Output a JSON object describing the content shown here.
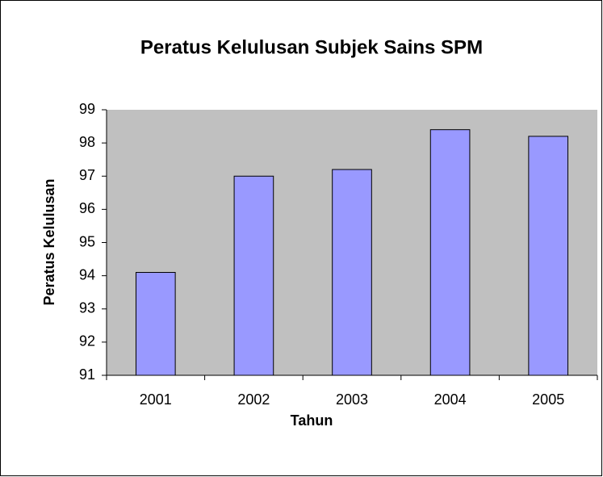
{
  "chart_data": {
    "type": "bar",
    "title": "Peratus Kelulusan Subjek Sains SPM",
    "x_label": "Tahun",
    "y_label": "Peratus Kelulusan",
    "categories": [
      "2001",
      "2002",
      "2003",
      "2004",
      "2005"
    ],
    "values": [
      94.1,
      97.0,
      97.2,
      98.4,
      98.2
    ],
    "color": "#9999ff",
    "ylim": [
      91,
      99
    ],
    "yticks": [
      91,
      92,
      93,
      94,
      95,
      96,
      97,
      98,
      99
    ],
    "grid": false,
    "plot_background": "#c0c0c0"
  }
}
